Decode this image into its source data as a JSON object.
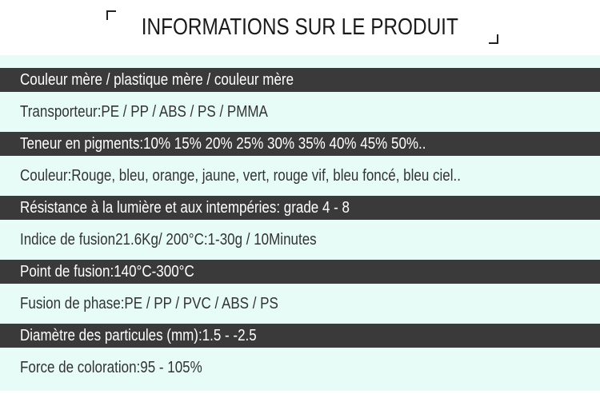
{
  "title": "INFORMATIONS SUR LE PRODUIT",
  "rows": [
    {
      "text": "Couleur mère / plastique mère / couleur mère",
      "style": "dark"
    },
    {
      "text": "Transporteur:PE / PP / ABS / PS / PMMA",
      "style": "light"
    },
    {
      "text": "Teneur en pigments:10% 15% 20% 25% 30% 35% 40% 45% 50%..",
      "style": "dark"
    },
    {
      "text": "Couleur:Rouge, bleu, orange, jaune, vert, rouge vif, bleu foncé, bleu ciel..",
      "style": "light"
    },
    {
      "text": "Résistance à la lumière et aux intempéries: grade 4 - 8",
      "style": "dark"
    },
    {
      "text": "Indice de fusion21.6Kg/ 200°C:1-30g / 10Minutes",
      "style": "light"
    },
    {
      "text": "Point de fusion:140°C-300°C",
      "style": "dark"
    },
    {
      "text": "Fusion de phase:PE / PP / PVC / ABS / PS",
      "style": "light"
    },
    {
      "text": "Diamètre des particules (mm):1.5 - -2.5",
      "style": "dark"
    },
    {
      "text": "Force de coloration:95 - 105%",
      "style": "light"
    }
  ],
  "colors": {
    "dark_row": "#3a3a3a",
    "panel": "#e8fcf7"
  }
}
